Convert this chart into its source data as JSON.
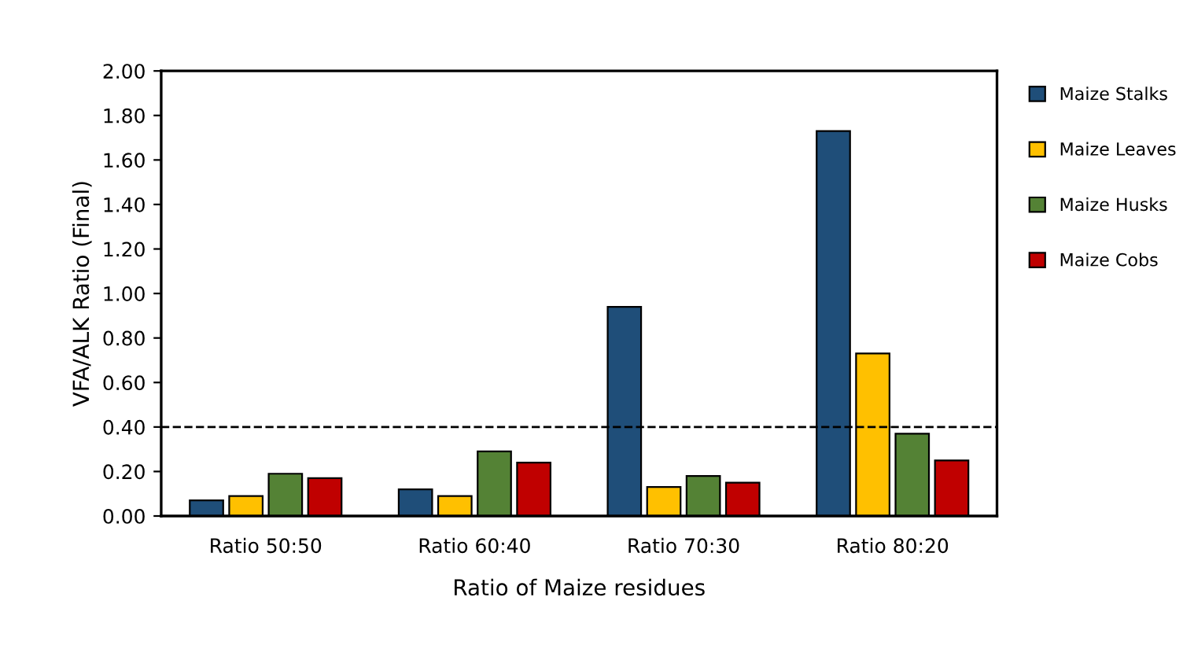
{
  "chart_data": {
    "type": "bar",
    "xlabel": "Ratio of Maize residues",
    "ylabel": "VFA/ALK Ratio (Final)",
    "categories": [
      "Ratio 50:50",
      "Ratio 60:40",
      "Ratio 70:30",
      "Ratio 80:20"
    ],
    "series": [
      {
        "name": "Maize Stalks",
        "color": "#1f4e79",
        "values": [
          0.07,
          0.12,
          0.94,
          1.73
        ]
      },
      {
        "name": "Maize Leaves",
        "color": "#ffc000",
        "values": [
          0.09,
          0.09,
          0.13,
          0.73
        ]
      },
      {
        "name": "Maize Husks",
        "color": "#548235",
        "values": [
          0.19,
          0.29,
          0.18,
          0.37
        ]
      },
      {
        "name": "Maize Cobs",
        "color": "#c00000",
        "values": [
          0.17,
          0.24,
          0.15,
          0.25
        ]
      }
    ],
    "ylim": [
      0,
      2.0
    ],
    "yticks": [
      {
        "value": 0,
        "label": "0.00"
      },
      {
        "value": 0.2,
        "label": "0.20"
      },
      {
        "value": 0.4,
        "label": "0.40"
      },
      {
        "value": 0.6,
        "label": "0.60"
      },
      {
        "value": 0.8,
        "label": "0.80"
      },
      {
        "value": 1.0,
        "label": "1.00"
      },
      {
        "value": 1.2,
        "label": "1.20"
      },
      {
        "value": 1.4,
        "label": "1.40"
      },
      {
        "value": 1.6,
        "label": "1.60"
      },
      {
        "value": 1.8,
        "label": "1.80"
      },
      {
        "value": 2.0,
        "label": "2.00"
      }
    ],
    "ref_lines": [
      {
        "axis": "y",
        "value": 0.4,
        "color": "#000000",
        "line_style": "dashed"
      }
    ],
    "legend": "right",
    "grid": false
  }
}
